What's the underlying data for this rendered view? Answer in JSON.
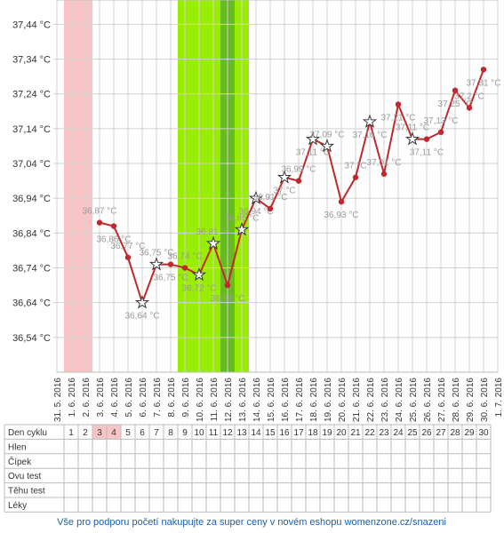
{
  "chart_data": {
    "type": "line",
    "categories": [
      "31. 5. 2016",
      "1. 6. 2016",
      "2. 6. 2016",
      "3. 6. 2016",
      "4. 6. 2016",
      "5. 6. 2016",
      "6. 6. 2016",
      "7. 6. 2016",
      "8. 6. 2016",
      "9. 6. 2016",
      "10. 6. 2016",
      "11. 6. 2016",
      "12. 6. 2016",
      "13. 6. 2016",
      "14. 6. 2016",
      "15. 6. 2016",
      "16. 6. 2016",
      "17. 6. 2016",
      "18. 6. 2016",
      "19. 6. 2016",
      "20. 6. 2016",
      "21. 6. 2016",
      "22. 6. 2016",
      "23. 6. 2016",
      "24. 6. 2016",
      "25. 6. 2016",
      "26. 6. 2016",
      "27. 6. 2016",
      "28. 6. 2016",
      "29. 6. 2016",
      "30. 6. 2016",
      "1. 7. 2016"
    ],
    "values": [
      null,
      null,
      null,
      36.87,
      36.86,
      36.77,
      36.64,
      36.75,
      36.75,
      36.74,
      36.72,
      36.81,
      36.69,
      36.85,
      36.94,
      36.91,
      37.0,
      36.99,
      37.11,
      37.09,
      36.93,
      37.0,
      37.16,
      37.01,
      37.21,
      37.11,
      37.11,
      37.13,
      37.25,
      37.2,
      37.31,
      null
    ],
    "value_labels": [
      null,
      null,
      null,
      "36,87 °C",
      "36,86 °C",
      "36,77 °C",
      "36,64 °C",
      "36,75 °C",
      "36,75 °C",
      "36,74 °C",
      "36,72 °C",
      "36,81 °C",
      "36,69 °C",
      "36,85 °C",
      "36,94 °C",
      "36,91 °C",
      "37 °C",
      "36,99 °C",
      "37,11 °C",
      "37,09 °C",
      "36,93 °C",
      "37 °C",
      "37,16 °C",
      "37,01 °C",
      "37,21 °C",
      "37,11 °C",
      "37,11 °C",
      "37,13 °C",
      "37,25 °C",
      "37,2 °C",
      "37,31 °C",
      null
    ],
    "markers": [
      null,
      null,
      null,
      "dot",
      "dot",
      "dot",
      "star",
      "star",
      "dot",
      "dot",
      "star",
      "star",
      "dot",
      "star",
      "star",
      "dot",
      "star",
      "dot",
      "star",
      "star",
      "dot",
      "dot",
      "star",
      "dot",
      "dot",
      "star",
      "dot",
      "dot",
      "dot",
      "dot",
      "dot",
      null
    ],
    "color": "#c0282d",
    "ylim": [
      36.44,
      37.51
    ],
    "yticks": [
      {
        "value": 36.54,
        "label": "36,54 °C"
      },
      {
        "value": 36.64,
        "label": "36,64 °C"
      },
      {
        "value": 36.74,
        "label": "36,74 °C"
      },
      {
        "value": 36.84,
        "label": "36,84 °C"
      },
      {
        "value": 36.94,
        "label": "36,94 °C"
      },
      {
        "value": 37.04,
        "label": "37,04 °C"
      },
      {
        "value": 37.14,
        "label": "37,14 °C"
      },
      {
        "value": 37.24,
        "label": "37,24 °C"
      },
      {
        "value": 37.34,
        "label": "37,34 °C"
      },
      {
        "value": 37.44,
        "label": "37,44 °C"
      }
    ],
    "grid": true
  },
  "table": {
    "row_labels": [
      "Den cyklu",
      "Hlen",
      "Čípek",
      "Ovu test",
      "Těhu test",
      "Léky"
    ],
    "days": [
      1,
      2,
      3,
      4,
      5,
      6,
      7,
      8,
      9,
      10,
      11,
      12,
      13,
      14,
      15,
      16,
      17,
      18,
      19,
      20,
      21,
      22,
      23,
      24,
      25,
      26,
      27,
      28,
      29,
      30
    ]
  },
  "footer": "Vše pro podporu početí nakupujte za super ceny v novém eshopu womenzone.cz/snazeni"
}
